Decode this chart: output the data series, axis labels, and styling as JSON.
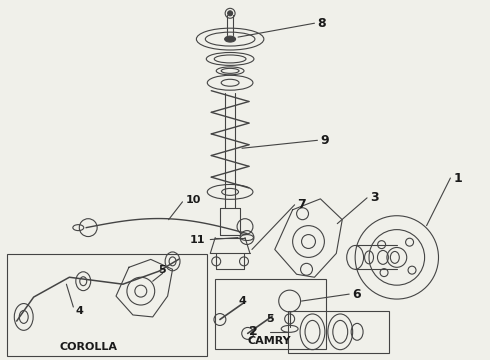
{
  "bg_color": "#f0f0ea",
  "line_color": "#444444",
  "text_color": "#1a1a1a",
  "figsize": [
    4.9,
    3.6
  ],
  "dpi": 100,
  "label_fontsize": 7
}
